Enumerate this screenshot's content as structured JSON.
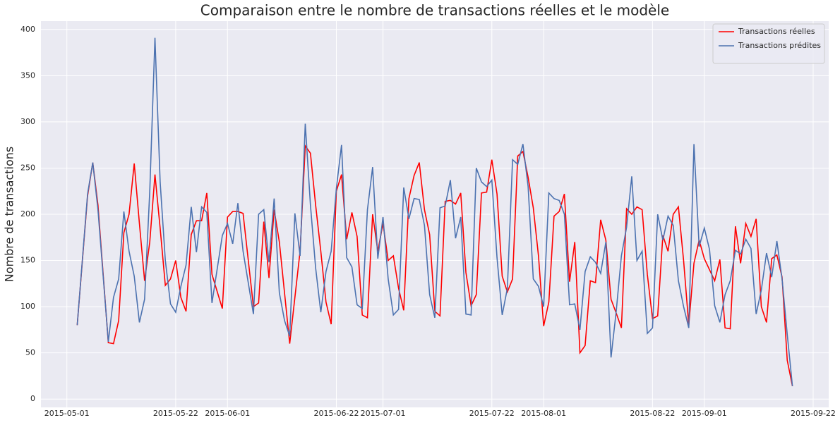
{
  "chart_data": {
    "type": "line",
    "title": "Comparaison entre le nombre de transactions réelles et le modèle",
    "y_label": "Nombre de transactions",
    "x": [
      "2015-05-03",
      "2015-05-05",
      "2015-05-06",
      "2015-05-07",
      "2015-05-09",
      "2015-05-10",
      "2015-05-11",
      "2015-05-12",
      "2015-05-13",
      "2015-05-14",
      "2015-05-15",
      "2015-05-16",
      "2015-05-17",
      "2015-05-18",
      "2015-05-19",
      "2015-05-20",
      "2015-05-21",
      "2015-05-22",
      "2015-05-23",
      "2015-05-24",
      "2015-05-25",
      "2015-05-26",
      "2015-05-27",
      "2015-05-28",
      "2015-05-29",
      "2015-05-31",
      "2015-06-01",
      "2015-06-02",
      "2015-06-03",
      "2015-06-04",
      "2015-06-06",
      "2015-06-07",
      "2015-06-08",
      "2015-06-09",
      "2015-06-10",
      "2015-06-11",
      "2015-06-12",
      "2015-06-13",
      "2015-06-14",
      "2015-06-15",
      "2015-06-16",
      "2015-06-17",
      "2015-06-18",
      "2015-06-19",
      "2015-06-20",
      "2015-06-21",
      "2015-06-22",
      "2015-06-23",
      "2015-06-24",
      "2015-06-25",
      "2015-06-26",
      "2015-06-27",
      "2015-06-28",
      "2015-06-29",
      "2015-06-30",
      "2015-07-01",
      "2015-07-02",
      "2015-07-03",
      "2015-07-04",
      "2015-07-05",
      "2015-07-06",
      "2015-07-07",
      "2015-07-08",
      "2015-07-09",
      "2015-07-10",
      "2015-07-11",
      "2015-07-12",
      "2015-07-13",
      "2015-07-14",
      "2015-07-15",
      "2015-07-16",
      "2015-07-17",
      "2015-07-18",
      "2015-07-19",
      "2015-07-20",
      "2015-07-21",
      "2015-07-22",
      "2015-07-23",
      "2015-07-24",
      "2015-07-25",
      "2015-07-26",
      "2015-07-27",
      "2015-07-28",
      "2015-07-29",
      "2015-07-30",
      "2015-07-31",
      "2015-08-01",
      "2015-08-02",
      "2015-08-03",
      "2015-08-04",
      "2015-08-05",
      "2015-08-06",
      "2015-08-07",
      "2015-08-08",
      "2015-08-09",
      "2015-08-10",
      "2015-08-11",
      "2015-08-12",
      "2015-08-13",
      "2015-08-14",
      "2015-08-15",
      "2015-08-16",
      "2015-08-17",
      "2015-08-18",
      "2015-08-19",
      "2015-08-20",
      "2015-08-21",
      "2015-08-22",
      "2015-08-23",
      "2015-08-24",
      "2015-08-25",
      "2015-08-26",
      "2015-08-27",
      "2015-08-28",
      "2015-08-29",
      "2015-08-30",
      "2015-08-31",
      "2015-09-01",
      "2015-09-02",
      "2015-09-03",
      "2015-09-04",
      "2015-09-05",
      "2015-09-06",
      "2015-09-07",
      "2015-09-08",
      "2015-09-09",
      "2015-09-10",
      "2015-09-11",
      "2015-09-12",
      "2015-09-13",
      "2015-09-14",
      "2015-09-15",
      "2015-09-16",
      "2015-09-17",
      "2015-09-18"
    ],
    "series": [
      {
        "name": "Transactions réelles",
        "color": "#ff0000",
        "values": [
          80,
          220,
          256,
          210,
          61,
          60,
          85,
          180,
          200,
          255,
          190,
          128,
          170,
          243,
          185,
          123,
          130,
          150,
          110,
          95,
          178,
          193,
          193,
          223,
          135,
          98,
          197,
          203,
          203,
          201,
          100,
          104,
          192,
          131,
          205,
          170,
          115,
          60,
          110,
          160,
          274,
          266,
          210,
          160,
          105,
          81,
          225,
          243,
          173,
          202,
          176,
          91,
          88,
          200,
          160,
          190,
          150,
          155,
          120,
          96,
          217,
          242,
          256,
          205,
          178,
          95,
          90,
          214,
          215,
          211,
          223,
          137,
          101,
          113,
          223,
          224,
          259,
          222,
          133,
          116,
          130,
          263,
          268,
          240,
          207,
          155,
          79,
          105,
          198,
          203,
          222,
          127,
          170,
          50,
          58,
          128,
          126,
          194,
          172,
          108,
          93,
          77,
          206,
          200,
          208,
          205,
          135,
          87,
          90,
          177,
          160,
          200,
          208,
          150,
          80,
          147,
          172,
          152,
          140,
          128,
          151,
          77,
          76,
          187,
          147,
          190,
          176,
          195,
          100,
          83,
          152,
          156,
          132,
          42,
          14
        ]
      },
      {
        "name": "Transactions prédites",
        "color": "#4c72b0",
        "values": [
          80,
          222,
          256,
          205,
          62,
          110,
          130,
          203,
          160,
          133,
          83,
          108,
          225,
          391,
          235,
          150,
          103,
          94,
          122,
          145,
          208,
          159,
          208,
          202,
          104,
          177,
          190,
          168,
          212,
          160,
          92,
          200,
          205,
          148,
          217,
          115,
          85,
          68,
          201,
          155,
          298,
          210,
          142,
          94,
          138,
          160,
          228,
          275,
          153,
          143,
          102,
          98,
          205,
          251,
          152,
          197,
          130,
          91,
          97,
          229,
          195,
          217,
          216,
          188,
          113,
          88,
          207,
          209,
          237,
          174,
          197,
          92,
          91,
          250,
          235,
          230,
          237,
          153,
          91,
          120,
          259,
          254,
          276,
          230,
          130,
          122,
          100,
          223,
          217,
          215,
          200,
          102,
          103,
          75,
          138,
          154,
          148,
          136,
          170,
          45,
          95,
          155,
          186,
          241,
          150,
          160,
          71,
          77,
          200,
          172,
          198,
          188,
          128,
          100,
          77,
          276,
          165,
          185,
          162,
          101,
          83,
          113,
          128,
          161,
          157,
          173,
          163,
          92,
          118,
          158,
          132,
          171,
          130,
          70,
          14
        ]
      }
    ],
    "xlim": [
      "2015-04-26",
      "2015-09-25"
    ],
    "xticks": [
      "2015-05-01",
      "2015-05-22",
      "2015-06-01",
      "2015-06-22",
      "2015-07-01",
      "2015-07-22",
      "2015-08-01",
      "2015-08-22",
      "2015-09-01",
      "2015-09-22"
    ],
    "ylim": [
      -9,
      409
    ],
    "yticks": [
      0,
      50,
      100,
      150,
      200,
      250,
      300,
      350,
      400
    ],
    "grid": true,
    "legend": "upper right"
  }
}
